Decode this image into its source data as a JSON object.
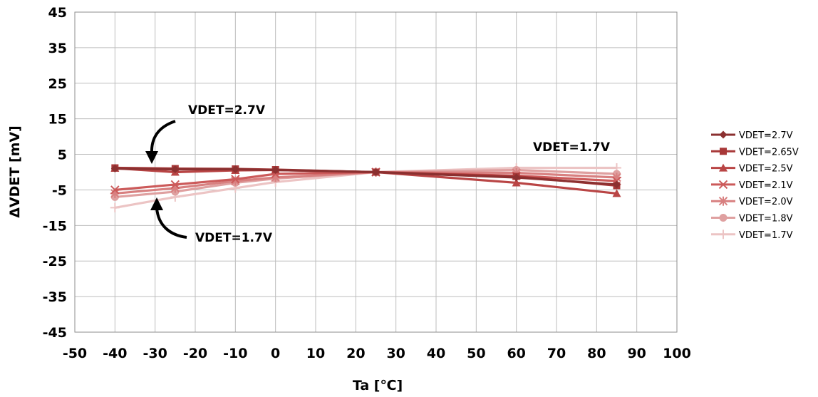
{
  "chart_data": {
    "type": "line",
    "title": "",
    "xlabel": "Ta [℃]",
    "ylabel": "ΔVDET [mV]",
    "xlim": [
      -50,
      100
    ],
    "ylim": [
      -45,
      45
    ],
    "xticks": [
      -50,
      -40,
      -30,
      -20,
      -10,
      0,
      10,
      20,
      30,
      40,
      50,
      60,
      70,
      80,
      90,
      100
    ],
    "yticks": [
      45,
      35,
      25,
      15,
      5,
      -5,
      -15,
      -25,
      -35,
      -45
    ],
    "grid": true,
    "legend_position": "right",
    "x": [
      -40,
      -25,
      -10,
      0,
      25,
      60,
      85
    ],
    "series": [
      {
        "name": "VDET=2.7V",
        "marker": "diamond",
        "color": "#8b3030",
        "values": [
          1.0,
          0.8,
          0.8,
          0.6,
          0,
          -1.5,
          -3.5
        ]
      },
      {
        "name": "VDET=2.65V",
        "marker": "square",
        "color": "#a83838",
        "values": [
          1.2,
          1.0,
          0.9,
          0.7,
          0,
          -1.2,
          -3.8
        ]
      },
      {
        "name": "VDET=2.5V",
        "marker": "triangle",
        "color": "#b94545",
        "values": [
          1.1,
          0.0,
          0.5,
          0.6,
          0,
          -3.0,
          -6.0
        ]
      },
      {
        "name": "VDET=2.1V",
        "marker": "x",
        "color": "#cc5a5a",
        "values": [
          -5.0,
          -3.5,
          -2.0,
          -0.5,
          0,
          -1.0,
          -2.5
        ]
      },
      {
        "name": "VDET=2.0V",
        "marker": "star",
        "color": "#d88080",
        "values": [
          -6.0,
          -4.5,
          -2.5,
          -1.5,
          0,
          -0.2,
          -1.5
        ]
      },
      {
        "name": "VDET=1.8V",
        "marker": "circle",
        "color": "#dfa0a0",
        "values": [
          -7.0,
          -5.5,
          -3.0,
          -1.8,
          0,
          0.6,
          -0.5
        ]
      },
      {
        "name": "VDET=1.7V",
        "marker": "plus",
        "color": "#ecc4c4",
        "values": [
          -10.0,
          -7.0,
          -4.5,
          -2.8,
          0,
          1.2,
          1.2
        ]
      }
    ],
    "annotations": [
      {
        "text": "VDET=2.7V"
      },
      {
        "text": "VDET=1.7V"
      },
      {
        "text": "VDET=1.7V"
      }
    ]
  }
}
